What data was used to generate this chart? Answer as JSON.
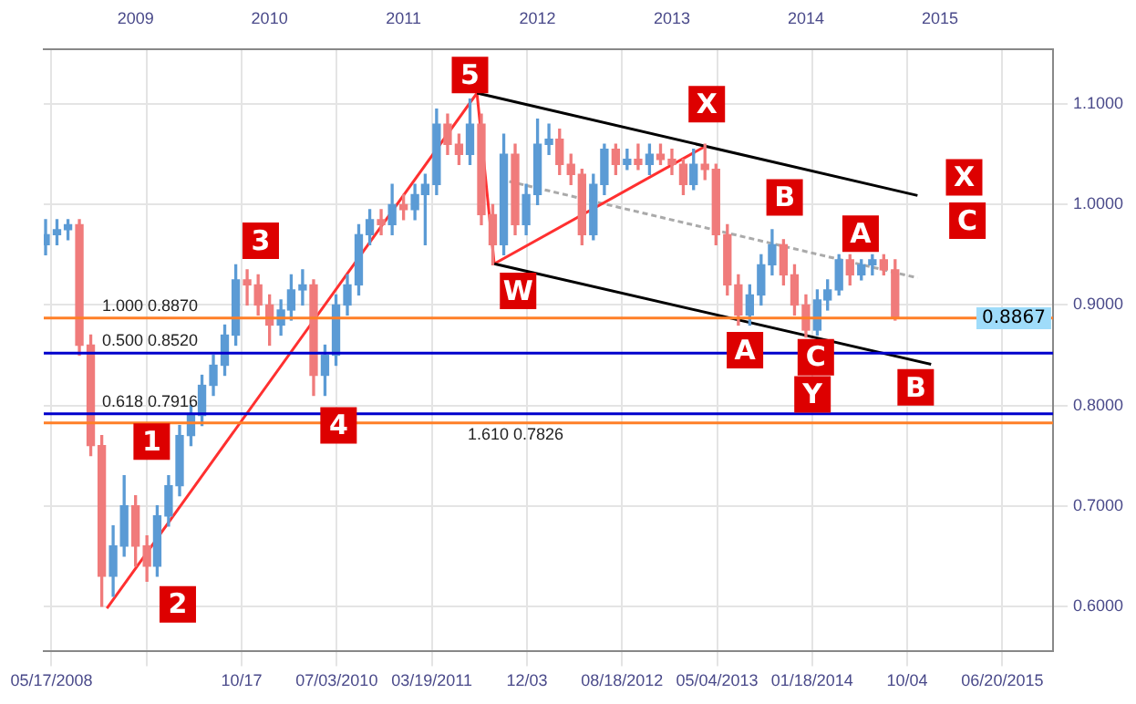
{
  "chart_data": {
    "type": "candlestick",
    "x": [
      "2008-05",
      "2008-06",
      "2008-07",
      "2008-08",
      "2008-09",
      "2008-10",
      "2008-11",
      "2008-12",
      "2009-01",
      "2009-02",
      "2009-03",
      "2009-04",
      "2009-05",
      "2009-06",
      "2009-07",
      "2009-08",
      "2009-09",
      "2009-10",
      "2009-11",
      "2009-12",
      "2010-01",
      "2010-02",
      "2010-03",
      "2010-04",
      "2010-05",
      "2010-06",
      "2010-07",
      "2010-08",
      "2010-09",
      "2010-10",
      "2010-11",
      "2010-12",
      "2011-01",
      "2011-02",
      "2011-03",
      "2011-04",
      "2011-05",
      "2011-06",
      "2011-07",
      "2011-08",
      "2011-09",
      "2011-10",
      "2011-11",
      "2011-12",
      "2012-01",
      "2012-02",
      "2012-03",
      "2012-04",
      "2012-05",
      "2012-06",
      "2012-07",
      "2012-08",
      "2012-09",
      "2012-10",
      "2012-11",
      "2012-12",
      "2013-01",
      "2013-02",
      "2013-03",
      "2013-04",
      "2013-05",
      "2013-06",
      "2013-07",
      "2013-08",
      "2013-09",
      "2013-10",
      "2013-11",
      "2013-12",
      "2014-01",
      "2014-02",
      "2014-03",
      "2014-04",
      "2014-05",
      "2014-06",
      "2014-07",
      "2014-08",
      "2014-09"
    ],
    "ohlc": [
      [
        0.96,
        0.985,
        0.95,
        0.97
      ],
      [
        0.97,
        0.985,
        0.96,
        0.975
      ],
      [
        0.975,
        0.985,
        0.965,
        0.98
      ],
      [
        0.98,
        0.985,
        0.85,
        0.86
      ],
      [
        0.86,
        0.87,
        0.75,
        0.76
      ],
      [
        0.76,
        0.77,
        0.6,
        0.63
      ],
      [
        0.63,
        0.68,
        0.61,
        0.66
      ],
      [
        0.66,
        0.73,
        0.65,
        0.7
      ],
      [
        0.7,
        0.71,
        0.64,
        0.66
      ],
      [
        0.66,
        0.67,
        0.625,
        0.64
      ],
      [
        0.64,
        0.7,
        0.63,
        0.69
      ],
      [
        0.69,
        0.73,
        0.68,
        0.72
      ],
      [
        0.72,
        0.78,
        0.71,
        0.77
      ],
      [
        0.77,
        0.8,
        0.76,
        0.79
      ],
      [
        0.79,
        0.83,
        0.78,
        0.82
      ],
      [
        0.82,
        0.85,
        0.81,
        0.84
      ],
      [
        0.84,
        0.88,
        0.83,
        0.87
      ],
      [
        0.87,
        0.94,
        0.86,
        0.925
      ],
      [
        0.925,
        0.935,
        0.9,
        0.92
      ],
      [
        0.92,
        0.93,
        0.89,
        0.9
      ],
      [
        0.9,
        0.91,
        0.86,
        0.88
      ],
      [
        0.88,
        0.905,
        0.87,
        0.895
      ],
      [
        0.895,
        0.93,
        0.885,
        0.915
      ],
      [
        0.915,
        0.935,
        0.9,
        0.92
      ],
      [
        0.92,
        0.925,
        0.81,
        0.83
      ],
      [
        0.83,
        0.86,
        0.81,
        0.85
      ],
      [
        0.85,
        0.91,
        0.84,
        0.9
      ],
      [
        0.9,
        0.93,
        0.89,
        0.92
      ],
      [
        0.92,
        0.98,
        0.91,
        0.97
      ],
      [
        0.97,
        0.995,
        0.96,
        0.985
      ],
      [
        0.985,
        0.995,
        0.97,
        0.98
      ],
      [
        0.98,
        1.02,
        0.97,
        1.0
      ],
      [
        1.0,
        1.01,
        0.985,
        0.995
      ],
      [
        0.995,
        1.02,
        0.985,
        1.01
      ],
      [
        1.01,
        1.03,
        0.96,
        1.02
      ],
      [
        1.02,
        1.095,
        1.01,
        1.08
      ],
      [
        1.08,
        1.09,
        1.05,
        1.06
      ],
      [
        1.06,
        1.07,
        1.04,
        1.05
      ],
      [
        1.05,
        1.105,
        1.04,
        1.08
      ],
      [
        1.08,
        1.09,
        0.98,
        0.99
      ],
      [
        0.99,
        1.0,
        0.94,
        0.96
      ],
      [
        0.96,
        1.07,
        0.95,
        1.05
      ],
      [
        1.05,
        1.06,
        0.97,
        0.98
      ],
      [
        0.98,
        1.02,
        0.97,
        1.01
      ],
      [
        1.01,
        1.085,
        1.0,
        1.06
      ],
      [
        1.06,
        1.08,
        1.05,
        1.065
      ],
      [
        1.065,
        1.075,
        1.03,
        1.04
      ],
      [
        1.04,
        1.05,
        1.02,
        1.03
      ],
      [
        1.03,
        1.035,
        0.96,
        0.97
      ],
      [
        0.97,
        1.03,
        0.965,
        1.02
      ],
      [
        1.02,
        1.06,
        1.01,
        1.055
      ],
      [
        1.055,
        1.06,
        1.03,
        1.04
      ],
      [
        1.04,
        1.055,
        1.035,
        1.045
      ],
      [
        1.045,
        1.06,
        1.035,
        1.04
      ],
      [
        1.04,
        1.06,
        1.03,
        1.05
      ],
      [
        1.05,
        1.06,
        1.04,
        1.045
      ],
      [
        1.045,
        1.055,
        1.03,
        1.04
      ],
      [
        1.04,
        1.045,
        1.01,
        1.02
      ],
      [
        1.02,
        1.055,
        1.015,
        1.04
      ],
      [
        1.04,
        1.06,
        1.025,
        1.035
      ],
      [
        1.035,
        1.04,
        0.96,
        0.97
      ],
      [
        0.97,
        0.98,
        0.91,
        0.92
      ],
      [
        0.92,
        0.93,
        0.88,
        0.89
      ],
      [
        0.89,
        0.92,
        0.88,
        0.91
      ],
      [
        0.91,
        0.95,
        0.9,
        0.94
      ],
      [
        0.94,
        0.975,
        0.93,
        0.96
      ],
      [
        0.96,
        0.965,
        0.92,
        0.93
      ],
      [
        0.93,
        0.94,
        0.89,
        0.9
      ],
      [
        0.9,
        0.91,
        0.868,
        0.875
      ],
      [
        0.875,
        0.915,
        0.87,
        0.905
      ],
      [
        0.905,
        0.925,
        0.895,
        0.915
      ],
      [
        0.915,
        0.95,
        0.91,
        0.945
      ],
      [
        0.945,
        0.95,
        0.92,
        0.93
      ],
      [
        0.93,
        0.945,
        0.925,
        0.94
      ],
      [
        0.94,
        0.95,
        0.93,
        0.945
      ],
      [
        0.945,
        0.95,
        0.93,
        0.935
      ],
      [
        0.935,
        0.945,
        0.885,
        0.8867
      ]
    ],
    "colors": [
      "#5b9bd5",
      "#5b9bd5",
      "#5b9bd5",
      "#f07b7b",
      "#f07b7b",
      "#f07b7b",
      "#5b9bd5",
      "#5b9bd5",
      "#f07b7b",
      "#f07b7b",
      "#5b9bd5",
      "#5b9bd5",
      "#5b9bd5",
      "#5b9bd5",
      "#5b9bd5",
      "#5b9bd5",
      "#5b9bd5",
      "#5b9bd5",
      "#f07b7b",
      "#f07b7b",
      "#f07b7b",
      "#5b9bd5",
      "#5b9bd5",
      "#5b9bd5",
      "#f07b7b",
      "#5b9bd5",
      "#5b9bd5",
      "#5b9bd5",
      "#5b9bd5",
      "#5b9bd5",
      "#f07b7b",
      "#5b9bd5",
      "#f07b7b",
      "#5b9bd5",
      "#5b9bd5",
      "#5b9bd5",
      "#f07b7b",
      "#f07b7b",
      "#5b9bd5",
      "#f07b7b",
      "#f07b7b",
      "#5b9bd5",
      "#f07b7b",
      "#5b9bd5",
      "#5b9bd5",
      "#5b9bd5",
      "#f07b7b",
      "#f07b7b",
      "#f07b7b",
      "#5b9bd5",
      "#5b9bd5",
      "#f07b7b",
      "#5b9bd5",
      "#f07b7b",
      "#5b9bd5",
      "#f07b7b",
      "#f07b7b",
      "#f07b7b",
      "#5b9bd5",
      "#f07b7b",
      "#f07b7b",
      "#f07b7b",
      "#f07b7b",
      "#5b9bd5",
      "#5b9bd5",
      "#5b9bd5",
      "#f07b7b",
      "#f07b7b",
      "#f07b7b",
      "#5b9bd5",
      "#5b9bd5",
      "#5b9bd5",
      "#f07b7b",
      "#5b9bd5",
      "#5b9bd5",
      "#f07b7b",
      "#f07b7b"
    ],
    "series": [
      {
        "type": "line",
        "color": "#000000",
        "x": [
          "2011-07-20",
          "2014-11-01"
        ],
        "values": [
          1.111,
          1.009
        ]
      },
      {
        "type": "line",
        "color": "#000000",
        "x": [
          "2011-09-05",
          "2014-12-08"
        ],
        "values": [
          0.941,
          0.841
        ]
      },
      {
        "type": "line",
        "color": "#ff3030",
        "x": [
          "2008-10-15",
          "2011-07-20",
          "2011-09-05",
          "2013-03-28"
        ],
        "values": [
          0.598,
          1.111,
          0.941,
          1.057
        ]
      },
      {
        "type": "line",
        "color": "#aaaaaa",
        "line_style": "dotted",
        "x": [
          "2011-10-16",
          "2014-11-01"
        ],
        "values": [
          1.023,
          0.927
        ]
      }
    ],
    "ref_lines": [
      {
        "axis": "y",
        "value": 0.852,
        "label": "0.500 0.8520",
        "color": "#0000cc"
      },
      {
        "axis": "y",
        "value": 0.7916,
        "label": "0.618 0.7916",
        "color": "#0000cc"
      },
      {
        "axis": "y",
        "value": 0.887,
        "label": "1.000 0.8870",
        "color": "#ff7f27"
      },
      {
        "axis": "y",
        "value": 0.7826,
        "label": "1.610 0.7826",
        "color": "#ff7f27"
      }
    ],
    "annotations": [
      {
        "text": "5",
        "x": "2011-07-01",
        "y": 1.129
      },
      {
        "text": "3",
        "x": "2009-12-08",
        "y": 0.964
      },
      {
        "text": "1",
        "x": "2009-02-14",
        "y": 0.764
      },
      {
        "text": "2",
        "x": "2009-04-26",
        "y": 0.602
      },
      {
        "text": "4",
        "x": "2010-07-08",
        "y": 0.78
      },
      {
        "text": "W",
        "x": "2011-11-09",
        "y": 0.914
      },
      {
        "text": "X",
        "x": "2013-04-06",
        "y": 1.1
      },
      {
        "text": "X",
        "x": "2015-03-08",
        "y": 1.027
      },
      {
        "text": "Y",
        "x": "2014-01-19",
        "y": 0.811
      },
      {
        "text": "B",
        "x": "2013-11-04",
        "y": 1.007
      },
      {
        "text": "A",
        "x": "2014-05-30",
        "y": 0.971
      },
      {
        "text": "C",
        "x": "2015-03-17",
        "y": 0.984
      },
      {
        "text": "A",
        "x": "2013-07-19",
        "y": 0.855
      },
      {
        "text": "C",
        "x": "2014-01-28",
        "y": 0.848
      },
      {
        "text": "B",
        "x": "2014-10-27",
        "y": 0.818
      },
      {
        "text": "0.8867",
        "y": 0.8867
      }
    ],
    "xlim": [
      "2008-04-26",
      "2015-11-05"
    ],
    "xticks": [
      {
        "value": "2008-05-17",
        "label": "05/17/2008"
      },
      {
        "value": "2009-01-31",
        "label": null
      },
      {
        "value": "2009-10-17",
        "label": "10/17"
      },
      {
        "value": "2010-07-03",
        "label": "07/03/2010"
      },
      {
        "value": "2011-03-19",
        "label": "03/19/2011"
      },
      {
        "value": "2011-12-03",
        "label": "12/03"
      },
      {
        "value": "2012-08-18",
        "label": "08/18/2012"
      },
      {
        "value": "2013-05-04",
        "label": "05/04/2013"
      },
      {
        "value": "2014-01-18",
        "label": "01/18/2014"
      },
      {
        "value": "2014-10-04",
        "label": "10/04"
      },
      {
        "value": "2015-06-20",
        "label": "06/20/2015"
      }
    ],
    "x2lim": [
      "2008-04-26",
      "2015-11-05"
    ],
    "x2ticks": [
      "2009",
      "2010",
      "2011",
      "2012",
      "2013",
      "2014",
      "2015"
    ],
    "ylim": [
      0.555,
      1.155
    ],
    "yticks": [
      {
        "value": 0.6,
        "label": "0.6000"
      },
      {
        "value": 0.7,
        "label": "0.7000"
      },
      {
        "value": 0.8,
        "label": "0.8000"
      },
      {
        "value": 0.9,
        "label": "0.9000"
      },
      {
        "value": 1.0,
        "label": "1.0000"
      },
      {
        "value": 1.1,
        "label": "1.1000"
      }
    ],
    "grid": true,
    "legend": false
  }
}
